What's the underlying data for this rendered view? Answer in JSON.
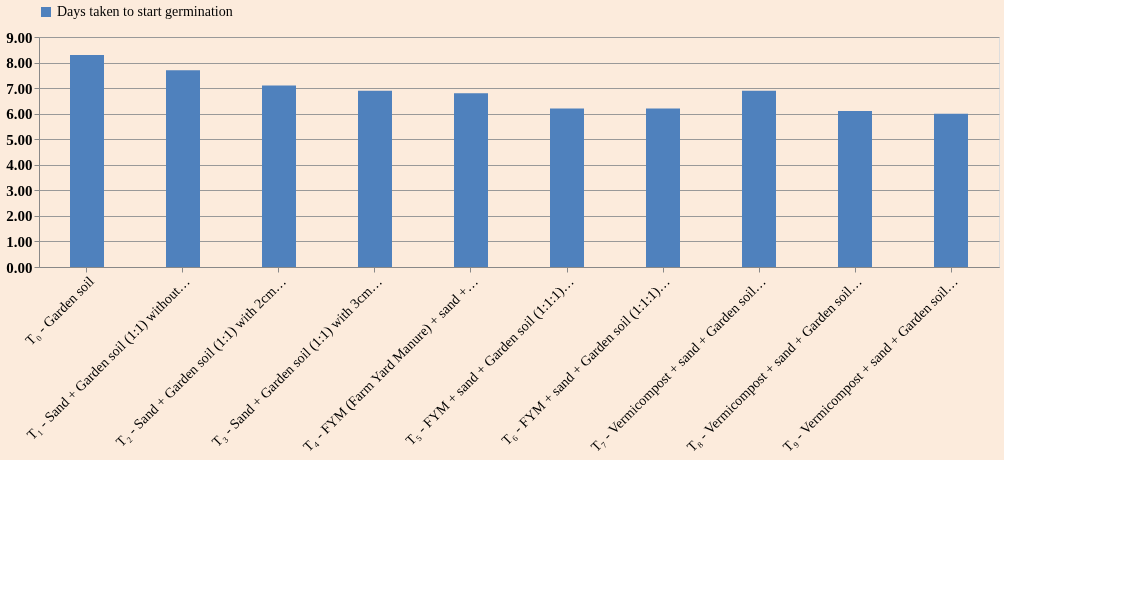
{
  "chart_data": {
    "type": "bar",
    "categories": [
      "T₀ - Garden soil",
      "T₁ - Sand + Garden soil (1:1) without…",
      "T₂ - Sand + Garden soil (1:1) with 2cm…",
      "T₃ - Sand + Garden soil (1:1) with 3cm…",
      "T₄ - FYM (Farm Yard Manure) + sand +…",
      "T₅ - FYM + sand + Garden soil (1:1:1)…",
      "T₆ - FYM + sand + Garden soil (1:1:1)…",
      "T₇ - Vermicompost + sand + Garden soil…",
      "T₈ - Vermicompost + sand + Garden soil…",
      "T₉ - Vermicompost + sand + Garden soil…"
    ],
    "series": [
      {
        "name": "Days taken to start germination",
        "color": "#4f81bd",
        "values": [
          8.3,
          7.7,
          7.1,
          6.9,
          6.8,
          6.2,
          6.2,
          6.9,
          6.1,
          6.0
        ]
      }
    ],
    "ylim": [
      0,
      9
    ],
    "yticks": [
      {
        "value": 0,
        "label": "0.00"
      },
      {
        "value": 1,
        "label": "1.00"
      },
      {
        "value": 2,
        "label": "2.00"
      },
      {
        "value": 3,
        "label": "3.00"
      },
      {
        "value": 4,
        "label": "4.00"
      },
      {
        "value": 5,
        "label": "5.00"
      },
      {
        "value": 6,
        "label": "6.00"
      },
      {
        "value": 7,
        "label": "7.00"
      },
      {
        "value": 8,
        "label": "8.00"
      },
      {
        "value": 9,
        "label": "9.00"
      }
    ],
    "grid": "y",
    "legend": "top"
  }
}
